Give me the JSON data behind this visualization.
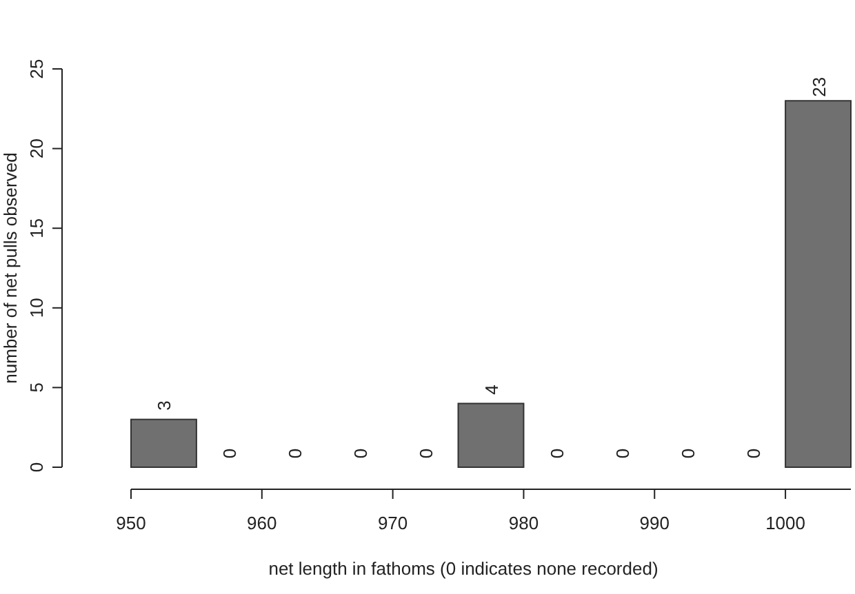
{
  "chart_data": {
    "type": "histogram",
    "xlabel": "net length in fathoms (0 indicates none recorded)",
    "ylabel": "number of net pulls observed",
    "bins": [
      950,
      955,
      960,
      965,
      970,
      975,
      980,
      985,
      990,
      995,
      1000,
      1005
    ],
    "values": [
      3,
      0,
      0,
      0,
      0,
      4,
      0,
      0,
      0,
      0,
      23
    ],
    "color": "#707070",
    "xlim": [
      950,
      1005
    ],
    "xticks": [
      950,
      960,
      970,
      980,
      990,
      1000
    ],
    "ylim": [
      0,
      25
    ],
    "yticks": [
      0,
      5,
      10,
      15,
      20,
      25
    ],
    "data_labels": true
  }
}
